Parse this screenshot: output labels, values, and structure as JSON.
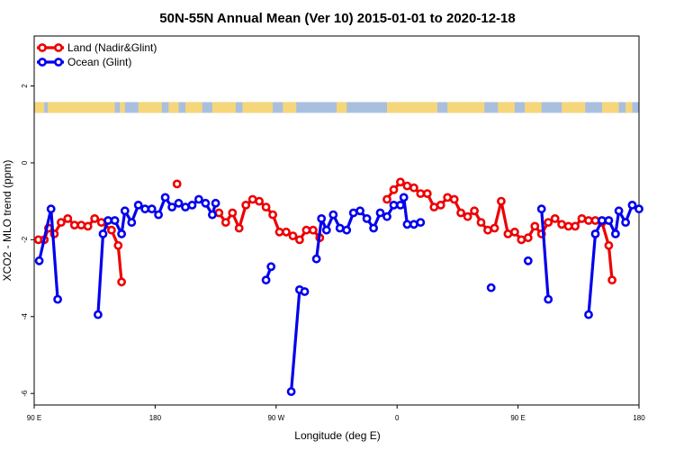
{
  "chart_data": {
    "type": "line",
    "title": "50N-55N Annual Mean (Ver 10)   2015-01-01 to 2020-12-18",
    "xlabel": "Longitude (deg E)",
    "ylabel": "XCO2 - MLO trend (ppm)",
    "xlim": [
      90,
      450
    ],
    "ylim": [
      -6.3,
      3.3
    ],
    "x_ticks": [
      {
        "value": 90,
        "label": "90 E"
      },
      {
        "value": 162,
        "label": "180"
      },
      {
        "value": 234,
        "label": "90 W"
      },
      {
        "value": 306,
        "label": "0"
      },
      {
        "value": 378,
        "label": "90 E"
      },
      {
        "value": 450,
        "label": "180"
      }
    ],
    "y_ticks": [
      {
        "value": 2,
        "label": "2"
      },
      {
        "value": 0,
        "label": "0"
      },
      {
        "value": -2,
        "label": "-2"
      },
      {
        "value": -4,
        "label": "-4"
      },
      {
        "value": -6,
        "label": "-6"
      }
    ],
    "grid": false,
    "legend_position": "top-left",
    "land_ocean_strip": {
      "y_range": [
        1.3,
        1.58
      ],
      "land_color": "#f5d67a",
      "ocean_color": "#a9bfdf"
    },
    "series": [
      {
        "name": "Land (Nadir&Glint)",
        "color": "#ee0000",
        "points": [
          [
            92.5,
            -2.0
          ],
          [
            96,
            -2.0
          ],
          [
            98.5,
            -1.7
          ],
          [
            102,
            -1.85
          ],
          [
            106,
            -1.55
          ],
          [
            110,
            -1.45
          ],
          [
            114,
            -1.62
          ],
          [
            118,
            -1.62
          ],
          [
            122,
            -1.65
          ],
          [
            126,
            -1.45
          ],
          [
            130,
            -1.55
          ],
          [
            136,
            -1.75
          ],
          [
            140,
            -2.15
          ],
          [
            142,
            -3.1
          ],
          null,
          [
            175,
            -0.55
          ],
          null,
          [
            200,
            -1.3
          ],
          [
            204,
            -1.55
          ],
          [
            208,
            -1.3
          ],
          [
            212,
            -1.7
          ],
          [
            216,
            -1.1
          ],
          [
            220,
            -0.95
          ],
          [
            224,
            -1.0
          ],
          [
            228,
            -1.15
          ],
          [
            232,
            -1.35
          ],
          [
            236,
            -1.8
          ],
          [
            240,
            -1.8
          ],
          [
            244,
            -1.9
          ],
          [
            248,
            -2.0
          ],
          [
            252,
            -1.75
          ],
          [
            256,
            -1.75
          ],
          [
            260,
            -1.95
          ],
          null,
          [
            300,
            -0.95
          ],
          [
            304,
            -0.7
          ],
          [
            308,
            -0.5
          ],
          [
            312,
            -0.6
          ],
          [
            316,
            -0.65
          ],
          [
            320,
            -0.8
          ],
          [
            324,
            -0.8
          ],
          [
            328,
            -1.15
          ],
          [
            332,
            -1.1
          ],
          [
            336,
            -0.9
          ],
          [
            340,
            -0.95
          ],
          [
            344,
            -1.3
          ],
          [
            348,
            -1.4
          ],
          [
            352,
            -1.25
          ],
          [
            356,
            -1.55
          ],
          [
            360,
            -1.75
          ],
          [
            364,
            -1.7
          ],
          [
            368,
            -1.0
          ],
          [
            372,
            -1.85
          ],
          [
            376,
            -1.8
          ],
          [
            380,
            -2.0
          ],
          [
            384,
            -1.95
          ],
          [
            388,
            -1.65
          ],
          [
            392,
            -1.85
          ],
          [
            396,
            -1.55
          ],
          [
            400,
            -1.45
          ],
          [
            404,
            -1.6
          ],
          [
            408,
            -1.65
          ],
          [
            412,
            -1.65
          ],
          [
            416,
            -1.45
          ],
          [
            420,
            -1.5
          ],
          [
            424,
            -1.5
          ],
          [
            428,
            -1.55
          ],
          [
            432,
            -2.15
          ],
          [
            434,
            -3.05
          ]
        ]
      },
      {
        "name": "Ocean (Glint)",
        "color": "#0000ee",
        "points": [
          [
            93,
            -2.55
          ],
          [
            100,
            -1.2
          ],
          [
            104,
            -3.55
          ],
          null,
          [
            128,
            -3.95
          ],
          [
            131,
            -1.85
          ],
          [
            134,
            -1.5
          ],
          [
            138,
            -1.5
          ],
          [
            142,
            -1.85
          ],
          [
            144,
            -1.25
          ],
          [
            148,
            -1.55
          ],
          [
            152,
            -1.1
          ],
          [
            156,
            -1.2
          ],
          [
            160,
            -1.2
          ],
          [
            164,
            -1.35
          ],
          [
            168,
            -0.9
          ],
          [
            172,
            -1.15
          ],
          [
            176,
            -1.05
          ],
          [
            180,
            -1.15
          ],
          [
            184,
            -1.1
          ],
          [
            188,
            -0.95
          ],
          [
            192,
            -1.05
          ],
          [
            196,
            -1.35
          ],
          [
            198,
            -1.05
          ],
          null,
          [
            228,
            -3.05
          ],
          [
            231,
            -2.7
          ],
          null,
          [
            243,
            -5.95
          ],
          [
            248,
            -3.3
          ],
          [
            251,
            -3.35
          ],
          null,
          [
            258,
            -2.5
          ],
          [
            261,
            -1.45
          ],
          [
            264,
            -1.75
          ],
          [
            268,
            -1.35
          ],
          [
            272,
            -1.7
          ],
          [
            276,
            -1.75
          ],
          [
            280,
            -1.3
          ],
          [
            284,
            -1.25
          ],
          [
            288,
            -1.45
          ],
          [
            292,
            -1.7
          ],
          [
            296,
            -1.3
          ],
          [
            300,
            -1.4
          ],
          [
            304,
            -1.1
          ],
          [
            308,
            -1.1
          ],
          [
            310,
            -0.9
          ],
          [
            312,
            -1.6
          ],
          [
            316,
            -1.6
          ],
          [
            320,
            -1.55
          ],
          null,
          [
            362,
            -3.25
          ],
          null,
          [
            384,
            -2.55
          ],
          null,
          [
            392,
            -1.2
          ],
          [
            396,
            -3.55
          ],
          null,
          [
            420,
            -3.95
          ],
          [
            424,
            -1.85
          ],
          [
            428,
            -1.5
          ],
          [
            432,
            -1.5
          ],
          [
            436,
            -1.85
          ],
          [
            438,
            -1.25
          ],
          [
            442,
            -1.55
          ],
          [
            446,
            -1.1
          ],
          [
            450,
            -1.2
          ]
        ]
      }
    ]
  }
}
